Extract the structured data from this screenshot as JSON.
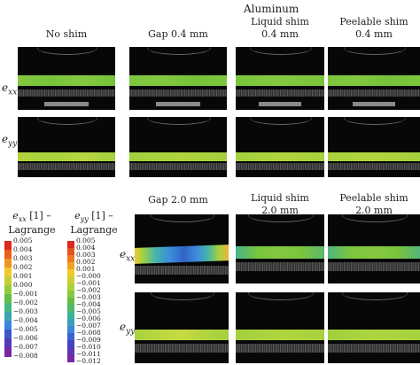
{
  "group_title": "Aluminum",
  "columns_top": {
    "no_shim": "No shim",
    "gap": "Gap 0.4 mm",
    "liquid": [
      "Liquid shim",
      "0.4 mm"
    ],
    "peelable": [
      "Peelable shim",
      "0.4 mm"
    ]
  },
  "columns_bottom": {
    "gap": "Gap 2.0 mm",
    "liquid": [
      "Liquid shim",
      "2.0 mm"
    ],
    "peelable": [
      "Peelable shim",
      "2.0 mm"
    ]
  },
  "row_labels": {
    "exx_base": "e",
    "exx_sub": "xx",
    "eyy_base": "e",
    "eyy_sub": "yy"
  },
  "legend_exx": {
    "title": [
      "e",
      "xx",
      " [1] –",
      "Lagrange"
    ],
    "ticks": [
      "0.005",
      "0.004",
      "0.003",
      "0.002",
      "0.001",
      "0.000",
      "−0.001",
      "−0.002",
      "−0.003",
      "−0.004",
      "−0.005",
      "−0.006",
      "−0.007",
      "−0.008"
    ]
  },
  "legend_eyy": {
    "title": [
      "e",
      "yy",
      " [1] –",
      "Lagrange"
    ],
    "ticks": [
      "0.005",
      "0.004",
      "0.003",
      "0.002",
      "0.001",
      "−0.000",
      "−0.001",
      "−0.002",
      "−0.003",
      "−0.004",
      "−0.005",
      "−0.006",
      "−0.007",
      "−0.008",
      "−0.009",
      "−0.010",
      "−0.011",
      "−0.012"
    ]
  },
  "colors": {
    "strain_green": "#78c83c",
    "strain_lime": "#a8d23c",
    "strain_blue": "#3c78dc"
  }
}
